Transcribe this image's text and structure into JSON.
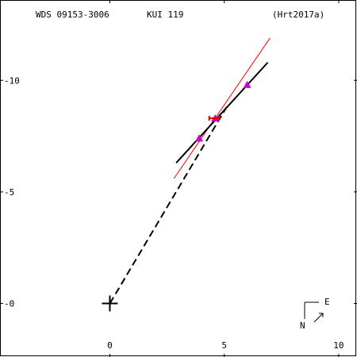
{
  "header": {
    "wds_id": "WDS 09153-3006",
    "discoverer": "KUI 119",
    "reference": "(Hrt2017a)"
  },
  "compass": {
    "east_label": "E",
    "north_label": "N"
  },
  "colors": {
    "frame": "#000000",
    "orbit_line": "#000000",
    "fit_line": "#ff0000",
    "measure_marker": "#cc00cc",
    "highlight_marker": "#dd0000"
  },
  "chart_data": {
    "type": "scatter",
    "title": "",
    "xlabel": "",
    "ylabel": "",
    "xlim": [
      -4.8,
      10.8
    ],
    "ylim": [
      -2.4,
      13.6
    ],
    "x_ticks": [
      0,
      5,
      10
    ],
    "y_ticks": [
      0,
      5,
      10
    ],
    "x_tick_labels": [
      "0",
      "5",
      "10"
    ],
    "y_tick_labels": [
      "-0",
      "-5",
      "-10"
    ],
    "primary": {
      "x": 0,
      "y": 0
    },
    "orbit_segment": {
      "x": [
        2.9,
        6.9
      ],
      "y": [
        6.3,
        10.8
      ]
    },
    "fit_line": {
      "x": [
        2.8,
        7.0
      ],
      "y": [
        5.6,
        11.9
      ]
    },
    "connector": {
      "x": [
        0,
        5.1
      ],
      "y": [
        0,
        8.8
      ]
    },
    "series": [
      {
        "values": [
          {
            "x": 3.9,
            "y": 7.4
          },
          {
            "x": 4.6,
            "y": 8.3
          },
          {
            "x": 6.0,
            "y": 9.8
          }
        ]
      }
    ],
    "highlight_point": {
      "x": 4.55,
      "y": 8.3
    },
    "grid": false,
    "legend": "none"
  }
}
